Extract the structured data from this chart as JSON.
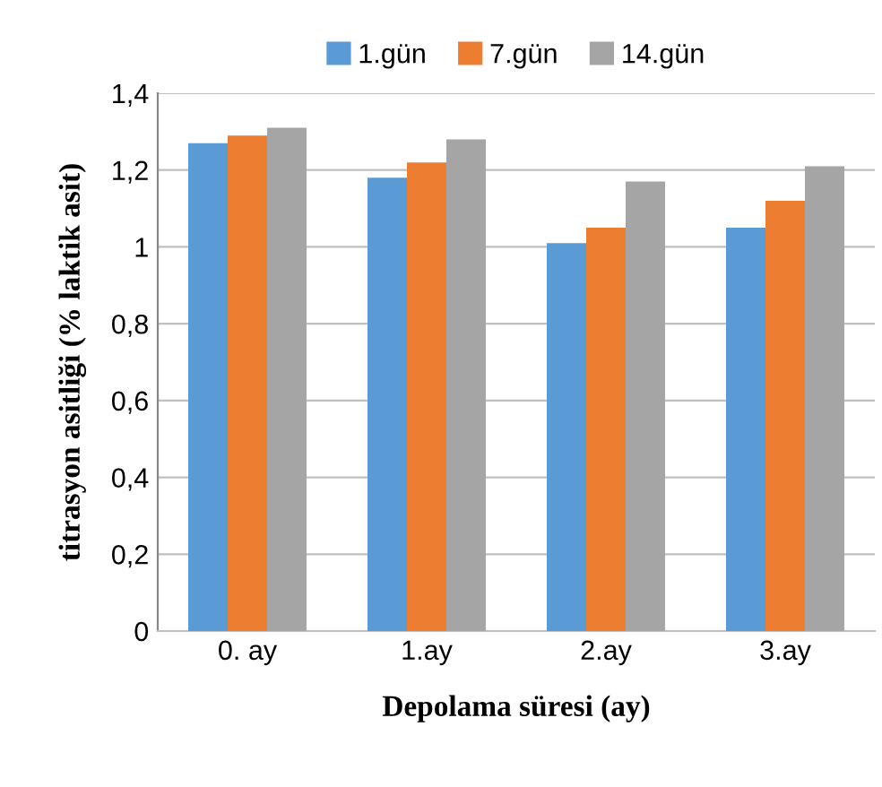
{
  "chart_data": {
    "type": "bar",
    "xlabel": "Depolama süresi (ay)",
    "ylabel": "titrasyon asitliği (% laktik asit)",
    "categories": [
      "0. ay",
      "1.ay",
      "2.ay",
      "3.ay"
    ],
    "series": [
      {
        "name": "1.gün",
        "color": "#5b9bd5",
        "values": [
          1.27,
          1.18,
          1.01,
          1.05
        ]
      },
      {
        "name": "7.gün",
        "color": "#ed7d31",
        "values": [
          1.29,
          1.22,
          1.05,
          1.12
        ]
      },
      {
        "name": "14.gün",
        "color": "#a5a5a5",
        "values": [
          1.31,
          1.28,
          1.17,
          1.21
        ]
      }
    ],
    "ylim": [
      0,
      1.4
    ],
    "yticks": [
      0,
      {
        "value": 0.2,
        "label": "0,2"
      },
      {
        "value": 0.4,
        "label": "0,4"
      },
      {
        "value": 0.6,
        "label": "0,6"
      },
      {
        "value": 0.8,
        "label": "0,8"
      },
      1,
      {
        "value": 1.2,
        "label": "1,2"
      },
      {
        "value": 1.4,
        "label": "1,4"
      }
    ],
    "grid": "y",
    "legend": "top"
  }
}
